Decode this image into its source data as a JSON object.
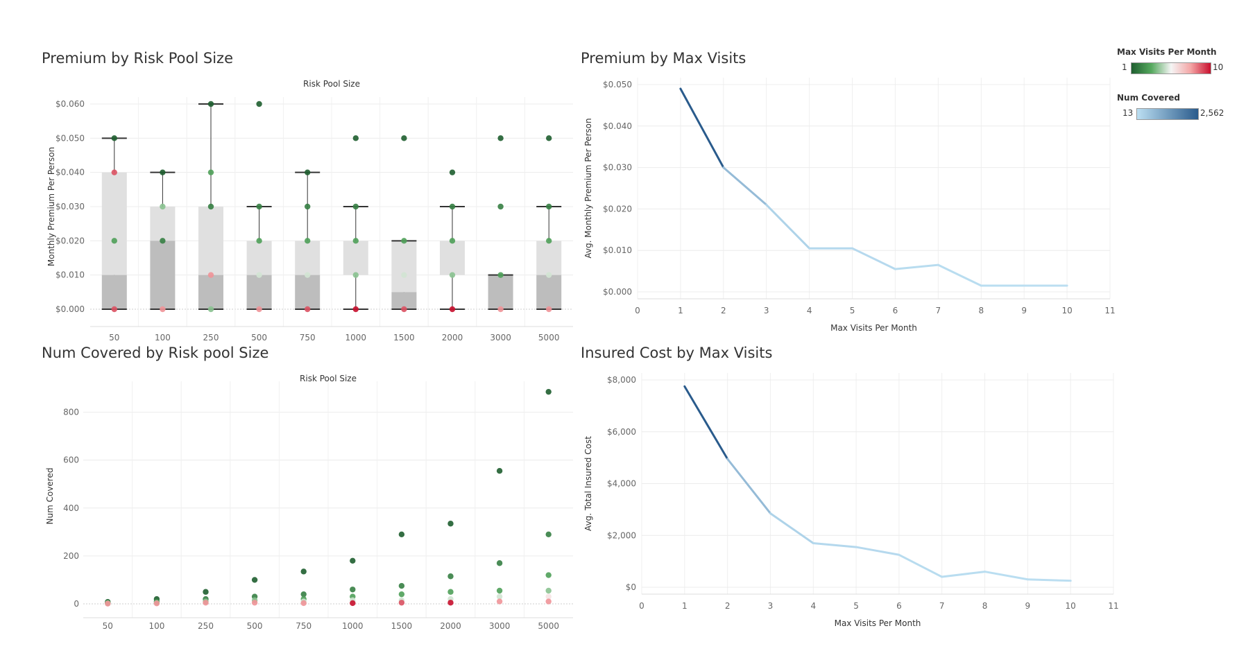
{
  "titles": {
    "premium_pool": "Premium by Risk Pool Size",
    "premium_visits": "Premium by Max Visits",
    "covered_pool": "Num Covered by Risk pool Size",
    "cost_visits": "Insured Cost by Max Visits"
  },
  "legend": {
    "visits_title": "Max Visits Per Month",
    "visits_min": "1",
    "visits_max": "10",
    "visits_colors": [
      "#1e5e2f",
      "#55a85e",
      "#f5f5f5",
      "#f4a5a5",
      "#c8102e"
    ],
    "covered_title": "Num Covered",
    "covered_min": "13",
    "covered_max": "2,562",
    "covered_colors": [
      "#bcdff2",
      "#2a5b8c"
    ]
  },
  "chart_data": [
    {
      "type": "scatter",
      "name": "Premium by Risk Pool Size",
      "column_header": "Risk Pool Size",
      "ylabel": "Monthly Premium Per Person",
      "categories": [
        "50",
        "100",
        "250",
        "500",
        "750",
        "1000",
        "1500",
        "2000",
        "3000",
        "5000"
      ],
      "yticks": [
        "$0.000",
        "$0.010",
        "$0.020",
        "$0.030",
        "$0.040",
        "$0.050",
        "$0.060"
      ],
      "ylim": [
        0,
        0.06
      ],
      "boxes": [
        {
          "min": 0,
          "q1": 0,
          "median": 0.01,
          "q3": 0.04,
          "max": 0.05
        },
        {
          "min": 0,
          "q1": 0,
          "median": 0.02,
          "q3": 0.03,
          "max": 0.04
        },
        {
          "min": 0,
          "q1": 0,
          "median": 0.01,
          "q3": 0.03,
          "max": 0.06
        },
        {
          "min": 0,
          "q1": 0,
          "median": 0.01,
          "q3": 0.02,
          "max": 0.03
        },
        {
          "min": 0,
          "q1": 0,
          "median": 0.01,
          "q3": 0.02,
          "max": 0.04
        },
        {
          "min": 0,
          "q1": 0.01,
          "median": 0.01,
          "q3": 0.02,
          "max": 0.03
        },
        {
          "min": 0,
          "q1": 0,
          "median": 0.005,
          "q3": 0.02,
          "max": 0.02
        },
        {
          "min": 0,
          "q1": 0.01,
          "median": 0.01,
          "q3": 0.02,
          "max": 0.03
        },
        {
          "min": 0,
          "q1": 0,
          "median": 0.01,
          "q3": 0.01,
          "max": 0.01
        },
        {
          "min": 0,
          "q1": 0,
          "median": 0.01,
          "q3": 0.02,
          "max": 0.03
        }
      ],
      "points": [
        [
          [
            0.05,
            1
          ],
          [
            0.04,
            9
          ],
          [
            0.02,
            3
          ],
          [
            0,
            9
          ]
        ],
        [
          [
            0.04,
            1
          ],
          [
            0.03,
            4
          ],
          [
            0.02,
            2
          ],
          [
            0,
            8
          ]
        ],
        [
          [
            0.06,
            1
          ],
          [
            0.04,
            3
          ],
          [
            0.03,
            2
          ],
          [
            0.01,
            8
          ],
          [
            0,
            4
          ]
        ],
        [
          [
            0.06,
            1
          ],
          [
            0.03,
            2
          ],
          [
            0.02,
            3
          ],
          [
            0.01,
            5
          ],
          [
            0,
            8
          ]
        ],
        [
          [
            0.04,
            1
          ],
          [
            0.03,
            2
          ],
          [
            0.02,
            3
          ],
          [
            0.01,
            5
          ],
          [
            0,
            9
          ]
        ],
        [
          [
            0.05,
            1
          ],
          [
            0.03,
            2
          ],
          [
            0.02,
            3
          ],
          [
            0.01,
            4
          ],
          [
            0,
            10
          ]
        ],
        [
          [
            0.05,
            1
          ],
          [
            0.02,
            3
          ],
          [
            0.01,
            5
          ],
          [
            0,
            9
          ]
        ],
        [
          [
            0.04,
            1
          ],
          [
            0.03,
            2
          ],
          [
            0.02,
            3
          ],
          [
            0.01,
            4
          ],
          [
            0,
            10
          ]
        ],
        [
          [
            0.05,
            1
          ],
          [
            0.03,
            2
          ],
          [
            0.01,
            3
          ],
          [
            0,
            8
          ]
        ],
        [
          [
            0.05,
            1
          ],
          [
            0.03,
            2
          ],
          [
            0.02,
            3
          ],
          [
            0.01,
            5
          ],
          [
            0,
            8
          ]
        ]
      ]
    },
    {
      "type": "line",
      "name": "Premium by Max Visits",
      "xlabel": "Max Visits Per Month",
      "ylabel": "Avg. Monthly Premium Per Person",
      "x": [
        1,
        2,
        3,
        4,
        5,
        6,
        7,
        8,
        9,
        10
      ],
      "y": [
        0.049,
        0.03,
        0.021,
        0.0105,
        0.0105,
        0.0055,
        0.0065,
        0.0015,
        0.0015,
        0.0015
      ],
      "covered": [
        2562,
        700,
        250,
        150,
        120,
        80,
        60,
        40,
        30,
        13
      ],
      "xlim": [
        0,
        11
      ],
      "xticks": [
        "0",
        "1",
        "2",
        "3",
        "4",
        "5",
        "6",
        "7",
        "8",
        "9",
        "10",
        "11"
      ],
      "ylim": [
        0,
        0.05
      ],
      "yticks": [
        "$0.000",
        "$0.010",
        "$0.020",
        "$0.030",
        "$0.040",
        "$0.050"
      ]
    },
    {
      "type": "scatter",
      "name": "Num Covered by Risk pool Size",
      "column_header": "Risk Pool Size",
      "ylabel": "Num Covered",
      "categories": [
        "50",
        "100",
        "250",
        "500",
        "750",
        "1000",
        "1500",
        "2000",
        "3000",
        "5000"
      ],
      "yticks": [
        "0",
        "200",
        "400",
        "600",
        "800"
      ],
      "ylim": [
        0,
        900
      ],
      "points": [
        [
          [
            8,
            1
          ],
          [
            5,
            2
          ],
          [
            3,
            4
          ],
          [
            1,
            8
          ]
        ],
        [
          [
            20,
            1
          ],
          [
            10,
            2
          ],
          [
            5,
            4
          ],
          [
            2,
            8
          ]
        ],
        [
          [
            50,
            1
          ],
          [
            20,
            2
          ],
          [
            10,
            4
          ],
          [
            5,
            8
          ]
        ],
        [
          [
            100,
            1
          ],
          [
            30,
            2
          ],
          [
            15,
            4
          ],
          [
            5,
            8
          ]
        ],
        [
          [
            135,
            1
          ],
          [
            40,
            2
          ],
          [
            20,
            3
          ],
          [
            10,
            5
          ],
          [
            3,
            8
          ]
        ],
        [
          [
            180,
            1
          ],
          [
            60,
            2
          ],
          [
            30,
            3
          ],
          [
            15,
            5
          ],
          [
            3,
            10
          ]
        ],
        [
          [
            290,
            1
          ],
          [
            75,
            2
          ],
          [
            40,
            3
          ],
          [
            15,
            5
          ],
          [
            5,
            9
          ]
        ],
        [
          [
            335,
            1
          ],
          [
            115,
            2
          ],
          [
            50,
            3
          ],
          [
            20,
            5
          ],
          [
            5,
            10
          ]
        ],
        [
          [
            555,
            1
          ],
          [
            170,
            2
          ],
          [
            55,
            3
          ],
          [
            30,
            5
          ],
          [
            10,
            8
          ]
        ],
        [
          [
            885,
            1
          ],
          [
            290,
            2
          ],
          [
            120,
            3
          ],
          [
            55,
            4
          ],
          [
            30,
            6
          ],
          [
            10,
            8
          ]
        ]
      ]
    },
    {
      "type": "line",
      "name": "Insured Cost by Max Visits",
      "xlabel": "Max Visits Per Month",
      "ylabel": "Avg. Total Insured Cost",
      "x": [
        1,
        2,
        3,
        4,
        5,
        6,
        7,
        8,
        9,
        10
      ],
      "y": [
        7750,
        4950,
        2850,
        1700,
        1550,
        1250,
        400,
        600,
        300,
        250
      ],
      "covered": [
        2562,
        700,
        250,
        150,
        120,
        80,
        60,
        40,
        30,
        13
      ],
      "xlim": [
        0,
        11
      ],
      "xticks": [
        "0",
        "1",
        "2",
        "3",
        "4",
        "5",
        "6",
        "7",
        "8",
        "9",
        "10",
        "11"
      ],
      "ylim": [
        0,
        8000
      ],
      "yticks": [
        "$0",
        "$2,000",
        "$4,000",
        "$6,000",
        "$8,000"
      ]
    }
  ]
}
